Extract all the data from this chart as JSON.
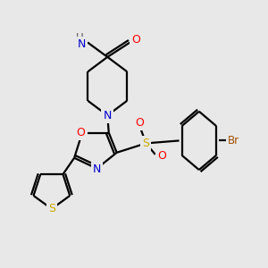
{
  "bg_color": "#e8e8e8",
  "bond_color": "#000000",
  "atom_colors": {
    "N": "#0000cd",
    "O": "#ff0000",
    "S_sulfonyl": "#ccaa00",
    "S_thio": "#ccaa00",
    "Br": "#a05000",
    "C": "#000000",
    "H": "#555555"
  }
}
